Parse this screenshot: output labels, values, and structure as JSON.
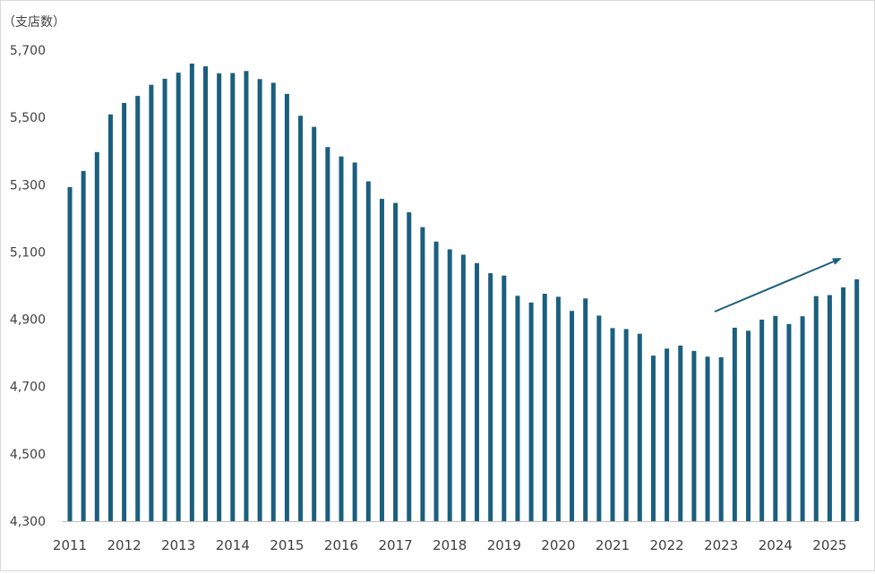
{
  "chart_data": {
    "type": "bar",
    "unit_label": "（支店数）",
    "ylim": [
      4300,
      5700
    ],
    "yticks": [
      "4,300",
      "4,500",
      "4,700",
      "4,900",
      "5,100",
      "5,300",
      "5,500",
      "5,700"
    ],
    "ytick_values": [
      4300,
      4500,
      4700,
      4900,
      5100,
      5300,
      5500,
      5700
    ],
    "year_labels": [
      "2011",
      "2012",
      "2013",
      "2014",
      "2015",
      "2016",
      "2017",
      "2018",
      "2019",
      "2020",
      "2021",
      "2022",
      "2023",
      "2024",
      "2025"
    ],
    "bars_per_year": 4,
    "values": [
      5293,
      5341,
      5397,
      5509,
      5543,
      5564,
      5597,
      5615,
      5633,
      5660,
      5652,
      5631,
      5632,
      5638,
      5614,
      5603,
      5570,
      5505,
      5472,
      5412,
      5384,
      5366,
      5310,
      5258,
      5246,
      5218,
      5174,
      5131,
      5108,
      5092,
      5067,
      5037,
      5030,
      4970,
      4950,
      4976,
      4967,
      4925,
      4962,
      4911,
      4874,
      4871,
      4857,
      4792,
      4813,
      4822,
      4806,
      4789,
      4787,
      4875,
      4866,
      4899,
      4910,
      4886,
      4909,
      4969,
      4972,
      4995,
      5019
    ],
    "bar_color": "#1b5f7e",
    "grid": false,
    "annotation": "upward trend arrow over 2023–2025 bars"
  }
}
